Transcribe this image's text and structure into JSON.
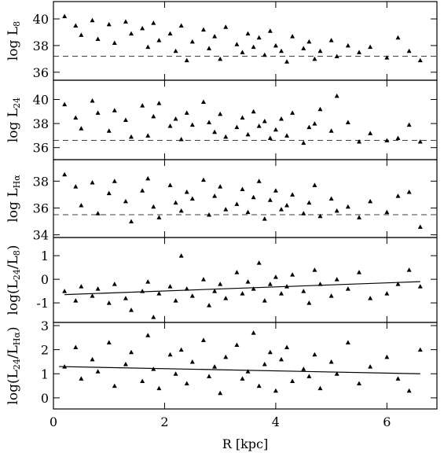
{
  "chart_data": [
    {
      "type": "scatter",
      "ylabel": [
        "log L",
        "8"
      ],
      "x": [
        0.2,
        0.4,
        0.5,
        0.7,
        0.8,
        1.0,
        1.1,
        1.3,
        1.4,
        1.6,
        1.7,
        1.8,
        1.9,
        2.1,
        2.2,
        2.3,
        2.4,
        2.5,
        2.7,
        2.8,
        2.9,
        3.0,
        3.1,
        3.3,
        3.4,
        3.5,
        3.6,
        3.7,
        3.8,
        3.9,
        4.0,
        4.1,
        4.2,
        4.3,
        4.5,
        4.6,
        4.7,
        4.8,
        5.0,
        5.1,
        5.3,
        5.5,
        5.7,
        6.0,
        6.2,
        6.4,
        6.6
      ],
      "y": [
        40.2,
        39.5,
        38.8,
        39.9,
        38.5,
        39.6,
        38.2,
        39.8,
        38.9,
        39.3,
        37.9,
        39.7,
        38.4,
        38.9,
        37.6,
        39.5,
        36.9,
        38.3,
        39.2,
        37.8,
        38.7,
        37.0,
        39.4,
        38.1,
        37.5,
        38.9,
        37.9,
        38.6,
        37.3,
        39.1,
        38.0,
        37.6,
        36.8,
        38.7,
        37.8,
        38.3,
        37.0,
        37.6,
        38.4,
        37.2,
        38.0,
        37.5,
        37.9,
        37.1,
        38.6,
        37.6,
        36.9
      ],
      "xlim": [
        0,
        6.9
      ],
      "xticks": [
        0,
        2,
        4,
        6
      ],
      "ylim": [
        35.4,
        41.3
      ],
      "yticks": [
        36,
        38,
        40
      ],
      "threshold": 37.2
    },
    {
      "type": "scatter",
      "ylabel": [
        "log L",
        "24"
      ],
      "x": [
        0.2,
        0.4,
        0.5,
        0.7,
        0.8,
        1.0,
        1.1,
        1.3,
        1.4,
        1.6,
        1.7,
        1.8,
        1.9,
        2.1,
        2.2,
        2.3,
        2.4,
        2.5,
        2.7,
        2.8,
        2.9,
        3.0,
        3.1,
        3.3,
        3.4,
        3.5,
        3.6,
        3.7,
        3.8,
        3.9,
        4.0,
        4.1,
        4.2,
        4.3,
        4.5,
        4.6,
        4.7,
        4.8,
        5.0,
        5.1,
        5.3,
        5.5,
        5.7,
        6.0,
        6.2,
        6.4,
        6.6
      ],
      "y": [
        39.6,
        38.5,
        37.6,
        39.9,
        38.9,
        37.4,
        39.1,
        38.3,
        36.9,
        39.5,
        37.0,
        38.6,
        39.7,
        37.8,
        38.4,
        36.7,
        38.9,
        37.9,
        39.8,
        38.1,
        37.3,
        38.8,
        36.9,
        37.7,
        38.5,
        37.1,
        39.0,
        37.8,
        38.2,
        36.8,
        37.5,
        38.4,
        37.0,
        38.9,
        36.4,
        37.7,
        38.0,
        39.2,
        37.4,
        40.3,
        38.1,
        36.5,
        37.2,
        36.6,
        36.8,
        37.9,
        36.5
      ],
      "xlim": [
        0,
        6.9
      ],
      "xticks": [
        0,
        2,
        4,
        6
      ],
      "ylim": [
        35.0,
        41.6
      ],
      "yticks": [
        36,
        38,
        40
      ],
      "threshold": 36.6
    },
    {
      "type": "scatter",
      "ylabel": [
        "log L",
        "Hα"
      ],
      "x": [
        0.2,
        0.4,
        0.5,
        0.7,
        0.8,
        1.0,
        1.1,
        1.3,
        1.4,
        1.6,
        1.7,
        1.8,
        1.9,
        2.1,
        2.2,
        2.3,
        2.4,
        2.5,
        2.7,
        2.8,
        2.9,
        3.0,
        3.1,
        3.3,
        3.4,
        3.5,
        3.6,
        3.7,
        3.8,
        3.9,
        4.0,
        4.1,
        4.2,
        4.3,
        4.5,
        4.6,
        4.7,
        4.8,
        5.0,
        5.1,
        5.3,
        5.5,
        5.7,
        6.0,
        6.2,
        6.4,
        6.6
      ],
      "y": [
        38.5,
        37.6,
        36.2,
        37.9,
        35.6,
        37.1,
        38.0,
        36.5,
        35.0,
        37.3,
        38.2,
        36.1,
        35.3,
        37.7,
        36.4,
        35.8,
        37.2,
        36.7,
        38.1,
        35.5,
        36.9,
        37.6,
        35.9,
        36.3,
        37.4,
        35.7,
        36.8,
        38.0,
        35.2,
        36.6,
        37.3,
        35.9,
        36.2,
        37.0,
        35.6,
        36.4,
        37.7,
        35.4,
        36.7,
        35.8,
        36.1,
        35.3,
        36.5,
        35.7,
        36.9,
        37.2,
        34.6
      ],
      "xlim": [
        0,
        6.9
      ],
      "xticks": [
        0,
        2,
        4,
        6
      ],
      "ylim": [
        33.8,
        39.6
      ],
      "yticks": [
        34,
        36,
        38
      ],
      "threshold": 35.5
    },
    {
      "type": "scatter",
      "ylabel": [
        "log(L",
        "24",
        "/L",
        "8",
        ")"
      ],
      "x": [
        0.2,
        0.4,
        0.5,
        0.7,
        0.8,
        1.0,
        1.1,
        1.3,
        1.4,
        1.6,
        1.7,
        1.8,
        1.9,
        2.1,
        2.2,
        2.3,
        2.4,
        2.5,
        2.7,
        2.8,
        2.9,
        3.0,
        3.1,
        3.3,
        3.4,
        3.5,
        3.6,
        3.7,
        3.8,
        3.9,
        4.0,
        4.1,
        4.2,
        4.3,
        4.5,
        4.6,
        4.7,
        4.8,
        5.0,
        5.1,
        5.3,
        5.5,
        5.7,
        6.0,
        6.2,
        6.4,
        6.6
      ],
      "y": [
        -0.5,
        -0.9,
        -0.3,
        -0.7,
        -0.4,
        -1.0,
        -0.2,
        -0.8,
        -1.3,
        -0.5,
        -0.1,
        -1.6,
        -0.6,
        -0.3,
        -0.9,
        1.0,
        -0.4,
        -0.7,
        0.0,
        -1.1,
        -0.5,
        -0.2,
        -0.8,
        0.3,
        -0.6,
        -0.1,
        -0.4,
        0.7,
        -0.9,
        -0.2,
        0.1,
        -0.6,
        -0.3,
        0.2,
        -0.5,
        -1.0,
        0.4,
        -0.2,
        -0.7,
        0.0,
        -0.4,
        0.3,
        -0.8,
        -0.6,
        -0.2,
        0.4,
        -0.3
      ],
      "xlim": [
        0,
        6.9
      ],
      "xticks": [
        0,
        2,
        4,
        6
      ],
      "ylim": [
        -1.83,
        1.77
      ],
      "yticks": [
        -1,
        0,
        1
      ],
      "fit": {
        "x": [
          0.2,
          6.6
        ],
        "y": [
          -0.65,
          -0.1
        ]
      }
    },
    {
      "type": "scatter",
      "ylabel": [
        "log(L",
        "24",
        "/L",
        "Hα",
        ")"
      ],
      "x": [
        0.2,
        0.4,
        0.5,
        0.7,
        0.8,
        1.0,
        1.1,
        1.3,
        1.4,
        1.6,
        1.7,
        1.8,
        1.9,
        2.1,
        2.2,
        2.3,
        2.4,
        2.5,
        2.7,
        2.8,
        2.9,
        3.0,
        3.1,
        3.3,
        3.4,
        3.5,
        3.6,
        3.7,
        3.8,
        3.9,
        4.0,
        4.1,
        4.2,
        4.3,
        4.5,
        4.6,
        4.7,
        4.8,
        5.0,
        5.1,
        5.3,
        5.5,
        5.7,
        6.0,
        6.2,
        6.4,
        6.6
      ],
      "y": [
        1.3,
        2.1,
        0.8,
        1.6,
        1.1,
        2.3,
        0.5,
        1.4,
        1.9,
        0.7,
        2.6,
        1.2,
        0.4,
        1.8,
        1.0,
        2.0,
        0.6,
        1.5,
        2.4,
        0.9,
        1.3,
        0.2,
        1.7,
        2.2,
        0.8,
        1.1,
        2.7,
        0.5,
        1.4,
        1.9,
        0.3,
        1.6,
        2.1,
        0.7,
        1.2,
        0.9,
        1.8,
        0.4,
        1.5,
        1.0,
        2.3,
        0.6,
        1.3,
        1.7,
        0.8,
        0.3,
        2.0
      ],
      "xlim": [
        0,
        6.9
      ],
      "xticks": [
        0,
        2,
        4,
        6
      ],
      "ylim": [
        -0.46,
        3.13
      ],
      "yticks": [
        0,
        1,
        2,
        3
      ],
      "fit": {
        "x": [
          0.1,
          6.6
        ],
        "y": [
          1.3,
          1.0
        ]
      },
      "xlabel": "R [kpc]"
    }
  ]
}
